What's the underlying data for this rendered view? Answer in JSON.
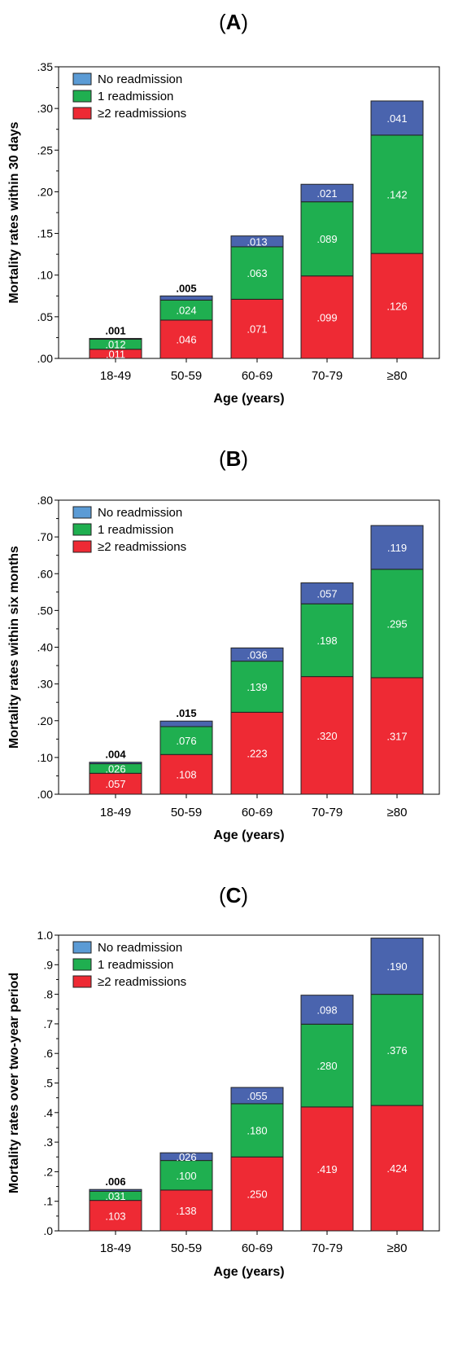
{
  "colors": {
    "no_readmission": "#4a64ae",
    "one_readmission": "#1faf50",
    "two_plus": "#ee2a34",
    "legend_no_readmission": "#5b9bd5"
  },
  "chart_data": [
    {
      "type": "bar",
      "stacked": true,
      "panel": "A",
      "categories": [
        "18-49",
        "50-59",
        "60-69",
        "70-79",
        "≥80"
      ],
      "xlabel": "Age (years)",
      "ylabel": "Mortality rates within 30 days",
      "ylim": [
        0,
        0.35
      ],
      "yticks": [
        ".00",
        ".05",
        ".10",
        ".15",
        ".20",
        ".25",
        ".30",
        ".35"
      ],
      "ytick_values": [
        0,
        0.05,
        0.1,
        0.15,
        0.2,
        0.25,
        0.3,
        0.35
      ],
      "legend": [
        "No readmission",
        "1 readmission",
        "≥2 readmissions"
      ],
      "legend_position": "top-left",
      "series": [
        {
          "name": "≥2 readmissions",
          "key": "two_plus",
          "values": [
            0.011,
            0.046,
            0.071,
            0.099,
            0.126
          ],
          "labels": [
            ".011",
            ".046",
            ".071",
            ".099",
            ".126"
          ]
        },
        {
          "name": "1 readmission",
          "key": "one_readmission",
          "values": [
            0.012,
            0.024,
            0.063,
            0.089,
            0.142
          ],
          "labels": [
            ".012",
            ".024",
            ".063",
            ".089",
            ".142"
          ]
        },
        {
          "name": "No readmission",
          "key": "no_readmission",
          "values": [
            0.001,
            0.005,
            0.013,
            0.021,
            0.041
          ],
          "labels": [
            ".001",
            ".005",
            ".013",
            ".021",
            ".041"
          ]
        }
      ]
    },
    {
      "type": "bar",
      "stacked": true,
      "panel": "B",
      "categories": [
        "18-49",
        "50-59",
        "60-69",
        "70-79",
        "≥80"
      ],
      "xlabel": "Age (years)",
      "ylabel": "Mortality rates within six months",
      "ylim": [
        0,
        0.8
      ],
      "yticks": [
        ".00",
        ".10",
        ".20",
        ".30",
        ".40",
        ".50",
        ".60",
        ".70",
        ".80"
      ],
      "ytick_values": [
        0,
        0.1,
        0.2,
        0.3,
        0.4,
        0.5,
        0.6,
        0.7,
        0.8
      ],
      "legend": [
        "No readmission",
        "1 readmission",
        "≥2 readmissions"
      ],
      "legend_position": "top-left",
      "series": [
        {
          "name": "≥2 readmissions",
          "key": "two_plus",
          "values": [
            0.057,
            0.108,
            0.223,
            0.32,
            0.317
          ],
          "labels": [
            ".057",
            ".108",
            ".223",
            ".320",
            ".317"
          ]
        },
        {
          "name": "1 readmission",
          "key": "one_readmission",
          "values": [
            0.026,
            0.076,
            0.139,
            0.198,
            0.295
          ],
          "labels": [
            ".026",
            ".076",
            ".139",
            ".198",
            ".295"
          ]
        },
        {
          "name": "No readmission",
          "key": "no_readmission",
          "values": [
            0.004,
            0.015,
            0.036,
            0.057,
            0.119
          ],
          "labels": [
            ".004",
            ".015",
            ".036",
            ".057",
            ".119"
          ]
        }
      ]
    },
    {
      "type": "bar",
      "stacked": true,
      "panel": "C",
      "categories": [
        "18-49",
        "50-59",
        "60-69",
        "70-79",
        "≥80"
      ],
      "xlabel": "Age (years)",
      "ylabel": "Mortality rates over two-year period",
      "ylim": [
        0,
        1.0
      ],
      "yticks": [
        ".0",
        ".1",
        ".2",
        ".3",
        ".4",
        ".5",
        ".6",
        ".7",
        ".8",
        ".9",
        "1.0"
      ],
      "ytick_values": [
        0,
        0.1,
        0.2,
        0.3,
        0.4,
        0.5,
        0.6,
        0.7,
        0.8,
        0.9,
        1.0
      ],
      "legend": [
        "No readmission",
        "1 readmission",
        "≥2 readmissions"
      ],
      "legend_position": "top-left",
      "series": [
        {
          "name": "≥2 readmissions",
          "key": "two_plus",
          "values": [
            0.103,
            0.138,
            0.25,
            0.419,
            0.424
          ],
          "labels": [
            ".103",
            ".138",
            ".250",
            ".419",
            ".424"
          ]
        },
        {
          "name": "1 readmission",
          "key": "one_readmission",
          "values": [
            0.031,
            0.1,
            0.18,
            0.28,
            0.376
          ],
          "labels": [
            ".031",
            ".100",
            ".180",
            ".280",
            ".376"
          ]
        },
        {
          "name": "No readmission",
          "key": "no_readmission",
          "values": [
            0.006,
            0.026,
            0.055,
            0.098,
            0.19
          ],
          "labels": [
            ".006",
            ".026",
            ".055",
            ".098",
            ".190"
          ]
        }
      ]
    }
  ]
}
